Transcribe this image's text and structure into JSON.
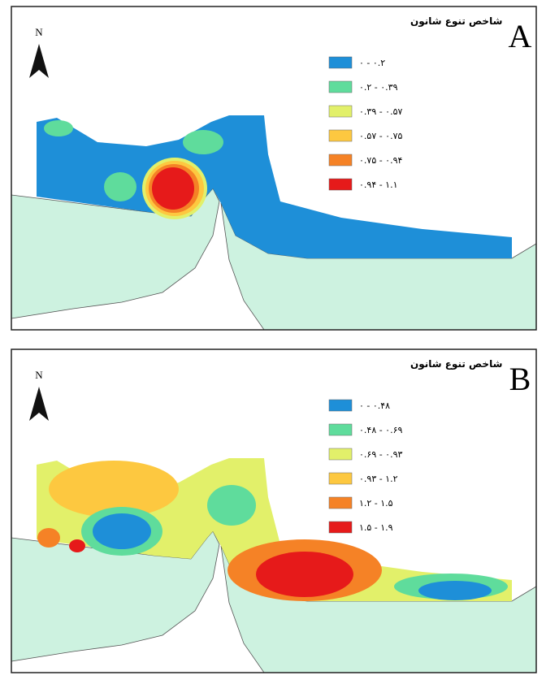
{
  "panels": [
    {
      "label": "A",
      "north": "N",
      "legend": {
        "title": "شاخص تنوع شانون",
        "items": [
          {
            "label": "۰ - ۰.۲",
            "color": "#1e8fd8"
          },
          {
            "label": "۰.۲ - ۰.۳۹",
            "color": "#5fdc9c"
          },
          {
            "label": "۰.۳۹ - ۰.۵۷",
            "color": "#e2f06a"
          },
          {
            "label": "۰.۵۷ - ۰.۷۵",
            "color": "#fdc840"
          },
          {
            "label": "۰.۷۵ - ۰.۹۴",
            "color": "#f58226"
          },
          {
            "label": "۰.۹۴ - ۱.۱",
            "color": "#e61a1a"
          }
        ]
      }
    },
    {
      "label": "B",
      "north": "N",
      "legend": {
        "title": "شاخص تنوع شانون",
        "items": [
          {
            "label": "۰ - ۰.۴۸",
            "color": "#1e8fd8"
          },
          {
            "label": "۰.۴۸ - ۰.۶۹",
            "color": "#5fdc9c"
          },
          {
            "label": "۰.۶۹ - ۰.۹۳",
            "color": "#e2f06a"
          },
          {
            "label": "۰.۹۳ - ۱.۲",
            "color": "#fdc840"
          },
          {
            "label": "۱.۲ - ۱.۵",
            "color": "#f58226"
          },
          {
            "label": "۱.۵ - ۱.۹",
            "color": "#e61a1a"
          }
        ]
      }
    }
  ]
}
